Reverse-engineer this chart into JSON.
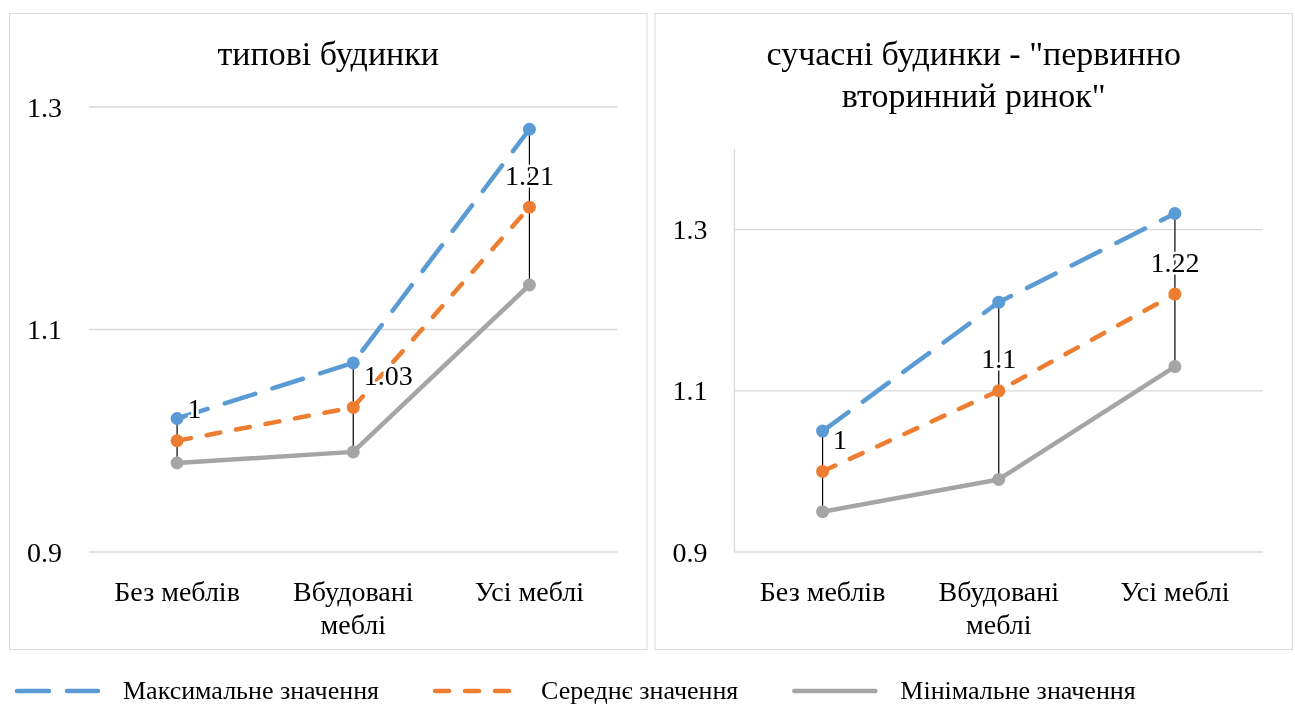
{
  "chart_data": [
    {
      "type": "line",
      "title": "типові будинки",
      "categories": [
        "Без меблів",
        "Вбудовані меблі",
        "Усі меблі"
      ],
      "series": [
        {
          "name": "Максимальне значення",
          "color": "#5b9bd5",
          "line_style": "dashed",
          "values": [
            1.02,
            1.07,
            1.28
          ]
        },
        {
          "name": "Середнє значення",
          "color": "#ed7d31",
          "line_style": "dashed",
          "values": [
            1.0,
            1.03,
            1.21
          ],
          "value_labels": [
            "1",
            "1.03",
            "1.21"
          ]
        },
        {
          "name": "Мінімальне значення",
          "color": "#a5a5a5",
          "line_style": "solid",
          "values": [
            0.98,
            0.99,
            1.14
          ]
        }
      ],
      "ylim": [
        0.9,
        1.3
      ],
      "yticks": [
        0.9,
        1.1,
        1.3
      ],
      "grid": "y",
      "legend": "bottom",
      "marker": "circle"
    },
    {
      "type": "line",
      "title": "сучасні будинки - \"первинно вторинний ринок\"",
      "categories": [
        "Без меблів",
        "Вбудовані меблі",
        "Усі меблі"
      ],
      "series": [
        {
          "color": "#5b9bd5",
          "line_style": "dashed",
          "values": [
            1.05,
            1.21,
            1.32
          ]
        },
        {
          "color": "#ed7d31",
          "line_style": "dashed",
          "values": [
            1.0,
            1.1,
            1.22
          ],
          "value_labels": [
            "1",
            "1.1",
            "1.22"
          ]
        },
        {
          "color": "#a5a5a5",
          "line_style": "solid",
          "values": [
            0.95,
            0.99,
            1.13
          ]
        }
      ],
      "ylim": [
        0.9,
        1.4
      ],
      "yticks": [
        0.9,
        1.1,
        1.3
      ],
      "grid": "y",
      "marker": "circle"
    }
  ]
}
